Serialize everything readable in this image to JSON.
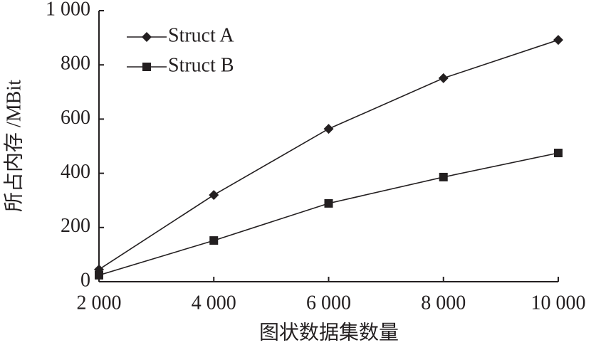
{
  "chart_data": {
    "type": "line",
    "x_label": "图状数据集数量",
    "y_label": "所占内存 /MBit",
    "x": [
      2000,
      4000,
      6000,
      8000,
      10000
    ],
    "series": [
      {
        "name": "Struct A",
        "color": "#231f20",
        "marker": "diamond",
        "values": [
          45,
          320,
          564,
          751,
          892
        ]
      },
      {
        "name": "Struct B",
        "color": "#231f20",
        "marker": "square",
        "values": [
          24,
          152,
          289,
          386,
          475
        ]
      }
    ],
    "xlim": [
      2000,
      10000
    ],
    "xticks": [
      {
        "value": 2000,
        "label": "2 000"
      },
      {
        "value": 4000,
        "label": "4 000"
      },
      {
        "value": 6000,
        "label": "6 000"
      },
      {
        "value": 8000,
        "label": "8 000"
      },
      {
        "value": 10000,
        "label": "10 000"
      }
    ],
    "ylim": [
      0,
      1000
    ],
    "yticks": [
      0,
      200,
      400,
      600,
      800,
      {
        "value": 1000,
        "label": "1 000"
      }
    ],
    "legend": "top-left"
  }
}
